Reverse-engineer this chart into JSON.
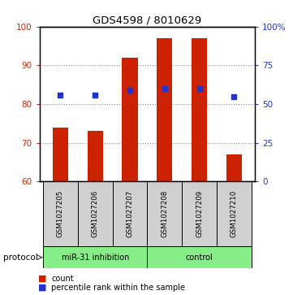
{
  "title": "GDS4598 / 8010629",
  "samples": [
    "GSM1027205",
    "GSM1027206",
    "GSM1027207",
    "GSM1027208",
    "GSM1027209",
    "GSM1027210"
  ],
  "counts": [
    74,
    73,
    92,
    97,
    97,
    67
  ],
  "percentile_ranks_left": [
    82.2,
    82.2,
    83.5,
    84.0,
    84.0,
    81.8
  ],
  "ylim_left": [
    60,
    100
  ],
  "yticks_left": [
    60,
    70,
    80,
    90,
    100
  ],
  "yticks_right": [
    0,
    25,
    50,
    75,
    100
  ],
  "bar_color": "#cc2200",
  "dot_color": "#2233cc",
  "bar_bottom": 60,
  "group_miR_label": "miR-31 inhibition",
  "group_control_label": "control",
  "group_color": "#88ee88",
  "protocol_label": "protocol",
  "legend_count_label": "count",
  "legend_percentile_label": "percentile rank within the sample",
  "grid_color": "#888888",
  "bar_width": 0.45,
  "dot_size": 18,
  "label_area_color": "#d0d0d0"
}
